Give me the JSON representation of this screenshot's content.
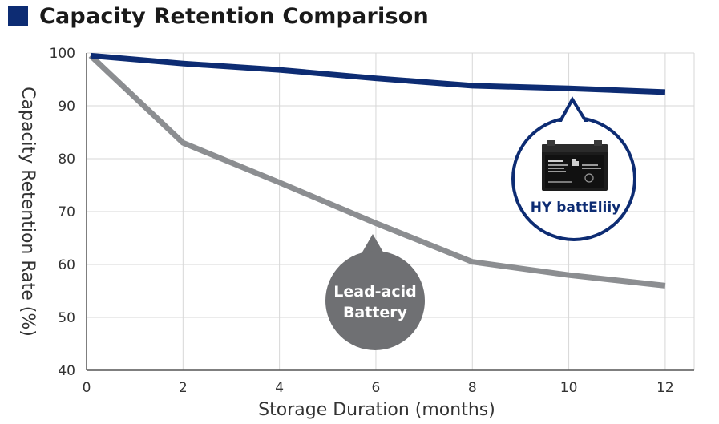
{
  "header": {
    "title": "Capacity Retention Comparison"
  },
  "colors": {
    "hy": "#0d2c73",
    "lead": "#8c8e91",
    "bubble": "#6f7073",
    "grid": "#d7d7d7",
    "axis": "#555555"
  },
  "chart_data": {
    "type": "line",
    "title": "Capacity Retention Comparison",
    "xlabel": "Storage Duration (months)",
    "ylabel": "Capacity Retention Rate (%)",
    "xlim": [
      0,
      12.6
    ],
    "ylim": [
      40,
      100
    ],
    "xticks": [
      0,
      2,
      4,
      6,
      8,
      10,
      12
    ],
    "yticks": [
      40,
      50,
      60,
      70,
      80,
      90,
      100
    ],
    "grid": true,
    "series": [
      {
        "name": "HY battEliiy",
        "color": "#0d2c73",
        "x": [
          0,
          2,
          4,
          6,
          8,
          10,
          12
        ],
        "values": [
          99.5,
          98,
          96.8,
          95.2,
          93.8,
          93.3,
          92.6
        ]
      },
      {
        "name": "Lead-acid Battery",
        "color": "#8c8e91",
        "x": [
          0,
          2,
          4,
          6,
          8,
          10,
          12
        ],
        "values": [
          99.5,
          83,
          75.5,
          67.8,
          60.5,
          58,
          56
        ]
      }
    ],
    "annotations": {
      "hy_label": "HY battEliiy",
      "lead_label_line1": "Lead-acid",
      "lead_label_line2": "Battery"
    }
  }
}
